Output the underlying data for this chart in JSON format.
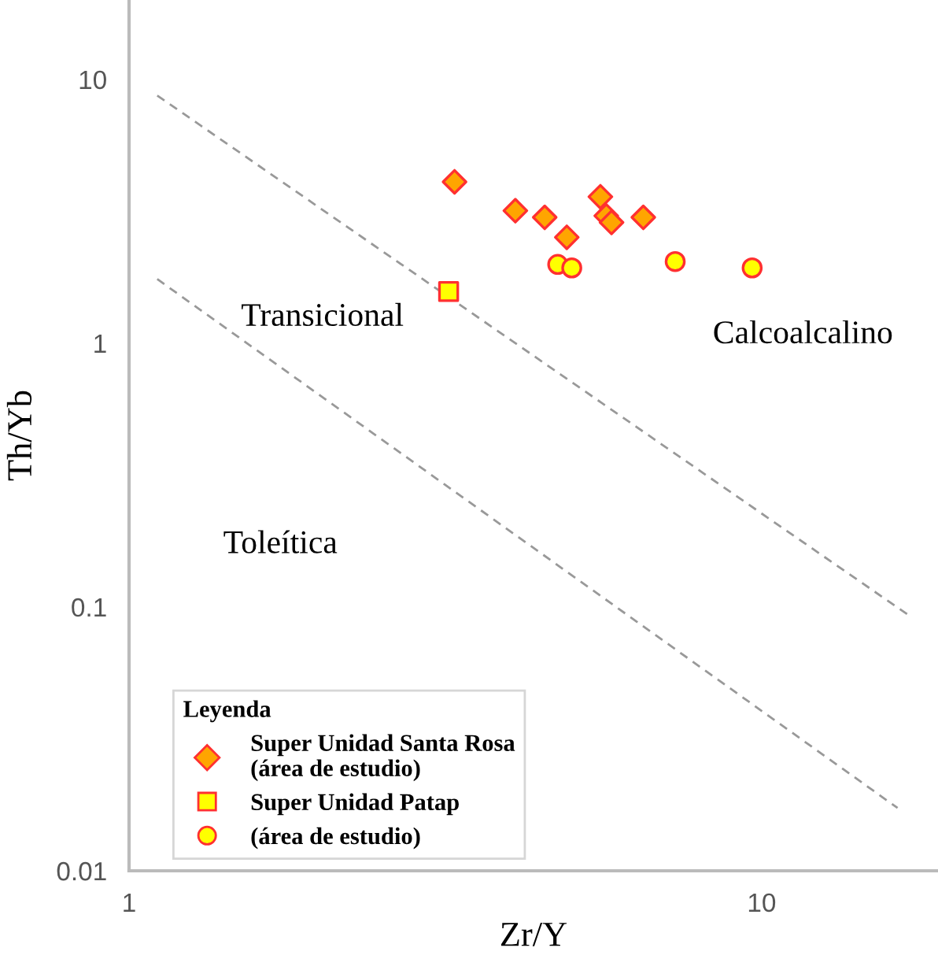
{
  "chart_data": {
    "type": "scatter",
    "xlabel": "Zr/Y",
    "ylabel": "Th/Yb",
    "log": "xy",
    "xlim": [
      1,
      19
    ],
    "ylim": [
      0.01,
      20
    ],
    "xticks": [
      1,
      10
    ],
    "yticks": [
      0.01,
      0.1,
      1,
      10
    ],
    "grid": false,
    "legend": "bottom left",
    "legend_title": "Leyenda",
    "series": [
      {
        "name": "Super Unidad Santa Rosa\n(área de estudio)",
        "color": "#ffa500",
        "marker": "diamond",
        "x": [
          3.27,
          4.08,
          4.54,
          5.56,
          5.68,
          5.79,
          6.5,
          4.92
        ],
        "values": [
          4.09,
          3.18,
          3.0,
          3.59,
          3.04,
          2.87,
          3.0,
          2.52
        ]
      },
      {
        "name": "Super Unidad Patap",
        "color": "#ffff00",
        "marker": "square",
        "x": [
          3.2
        ],
        "values": [
          1.57
        ]
      },
      {
        "name": "(área de estudio)",
        "color": "#ffff00",
        "marker": "circle",
        "x": [
          4.76,
          5.01,
          7.3,
          9.66
        ],
        "values": [
          1.99,
          1.93,
          2.04,
          1.93
        ]
      },
      {
        "type": "line",
        "color": "#999999",
        "line_style": "dashed",
        "x": [
          1.108,
          17.2
        ],
        "values": [
          8.69,
          0.092
        ]
      },
      {
        "type": "line",
        "color": "#999999",
        "line_style": "dashed",
        "x": [
          1.108,
          16.4
        ],
        "values": [
          1.75,
          0.0173
        ]
      }
    ],
    "annotations": [
      "Transicional",
      "Calcoalcalino",
      "Toleítica"
    ]
  }
}
